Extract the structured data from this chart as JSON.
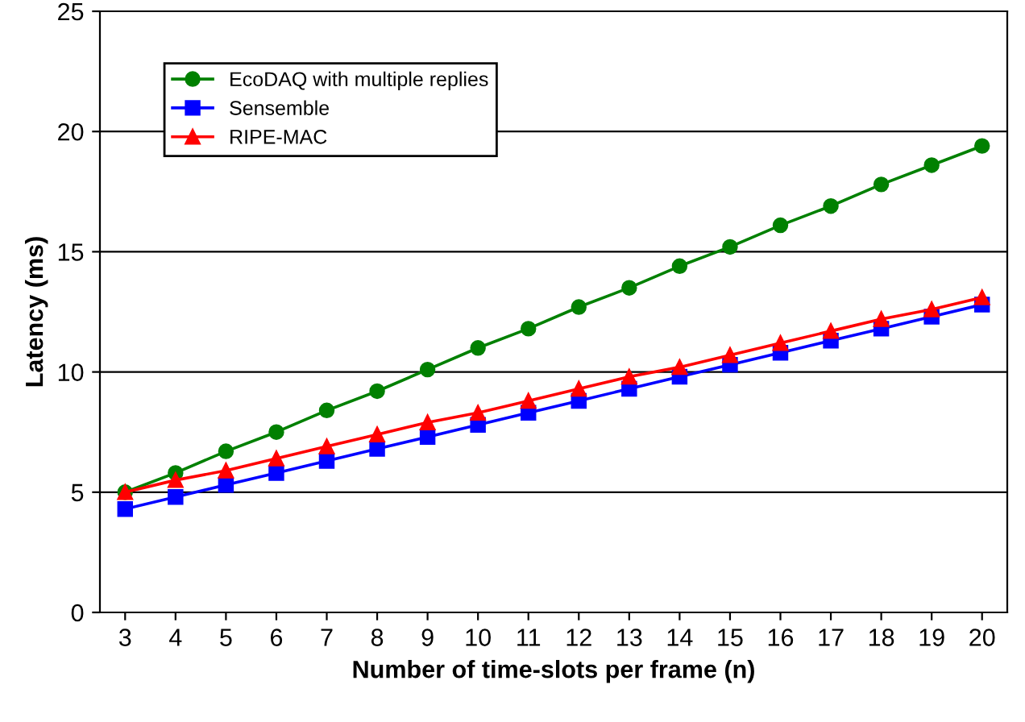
{
  "chart_data": {
    "type": "line",
    "xlabel": "Number of time-slots per frame (n)",
    "ylabel": "Latency (ms)",
    "categories": [
      "3",
      "4",
      "5",
      "6",
      "7",
      "8",
      "9",
      "10",
      "11",
      "12",
      "13",
      "14",
      "15",
      "16",
      "17",
      "18",
      "19",
      "20"
    ],
    "series": [
      {
        "name": "EcoDAQ with multiple replies",
        "color": "#008000",
        "marker": "circle",
        "values": [
          5.0,
          5.8,
          6.7,
          7.5,
          8.4,
          9.2,
          10.1,
          11.0,
          11.8,
          12.7,
          13.5,
          14.4,
          15.2,
          16.1,
          16.9,
          17.8,
          18.6,
          19.4
        ]
      },
      {
        "name": "Sensemble",
        "color": "#0000ff",
        "marker": "square",
        "values": [
          4.3,
          4.8,
          5.3,
          5.8,
          6.3,
          6.8,
          7.3,
          7.8,
          8.3,
          8.8,
          9.3,
          9.8,
          10.3,
          10.8,
          11.3,
          11.8,
          12.3,
          12.8
        ]
      },
      {
        "name": "RIPE-MAC",
        "color": "#ff0000",
        "marker": "triangle",
        "values": [
          5.0,
          5.5,
          5.9,
          6.4,
          6.9,
          7.4,
          7.9,
          8.3,
          8.8,
          9.3,
          9.8,
          10.2,
          10.7,
          11.2,
          11.7,
          12.2,
          12.6,
          13.1
        ]
      }
    ],
    "ylim": [
      0,
      25
    ],
    "yticks": [
      0,
      5,
      10,
      15,
      20,
      25
    ],
    "grid": "y",
    "legend": "top left",
    "line_style": "solid"
  }
}
